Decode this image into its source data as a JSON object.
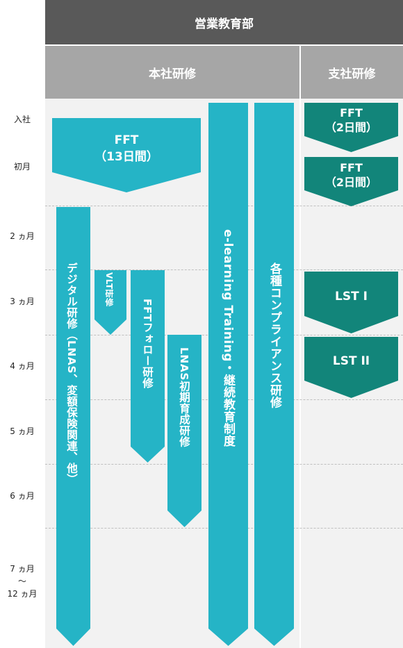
{
  "header": {
    "department": "営業教育部",
    "head_office": "本社研修",
    "branch": "支社研修"
  },
  "periods": [
    "入社",
    "初月",
    "2 ヵ月",
    "3 ヵ月",
    "4 ヵ月",
    "5 ヵ月",
    "6 ヵ月",
    "7 ヵ月",
    "～",
    "12 ヵ月"
  ],
  "head_office": {
    "fft": {
      "line1": "FFT",
      "line2": "（13日間）"
    },
    "digital": "デジタル研修（LNAS、変額保険関連、他）",
    "vlt": "VLT研修",
    "fft_follow": "FFTフォロー研修",
    "lnas": "LNAS初期育成研修",
    "elearning": "e-learning Training・継続教育制度",
    "compliance": "各種コンプライアンス研修"
  },
  "branch": {
    "fft1": {
      "line1": "FFT",
      "line2": "（2日間）"
    },
    "fft2": {
      "line1": "FFT",
      "line2": "（2日間）"
    },
    "lst1": "LST I",
    "lst2": "LST II"
  },
  "colors": {
    "head_office": "#25b4c6",
    "branch": "#12857a",
    "header_dark": "#595959",
    "header_light": "#a6a6a6",
    "panel": "#f2f2f2"
  }
}
